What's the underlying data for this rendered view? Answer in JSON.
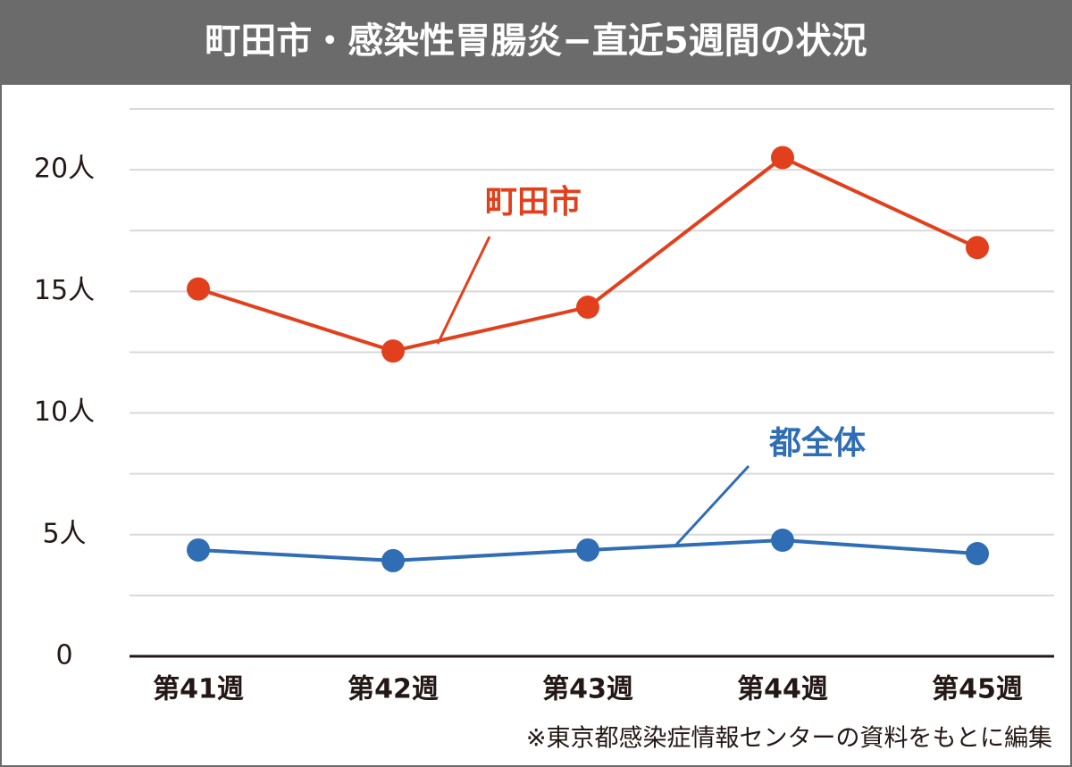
{
  "chart_data": {
    "type": "line",
    "title": "町田市・感染性胃腸炎−直近5週間の状況",
    "categories": [
      "第41週",
      "第42週",
      "第43週",
      "第44週",
      "第45週"
    ],
    "series": [
      {
        "name": "町田市",
        "color": "#e2401c",
        "values": [
          15.1,
          12.55,
          14.35,
          20.5,
          16.8
        ]
      },
      {
        "name": "都全体",
        "color": "#2f6db5",
        "values": [
          4.37,
          3.93,
          4.37,
          4.77,
          4.22
        ]
      }
    ],
    "ylim": [
      0,
      22.5
    ],
    "yticks": [
      0,
      {
        "value": 5,
        "label": "5人"
      },
      {
        "value": 10,
        "label": "10人"
      },
      {
        "value": 15,
        "label": "15人"
      },
      {
        "value": 20,
        "label": "20人"
      }
    ],
    "grid_lines": [
      2.5,
      5,
      7.5,
      10,
      12.5,
      15,
      17.5,
      20,
      22.5
    ],
    "grid": true,
    "note": "※東京都感染症情報センターの資料をもとに編集"
  }
}
